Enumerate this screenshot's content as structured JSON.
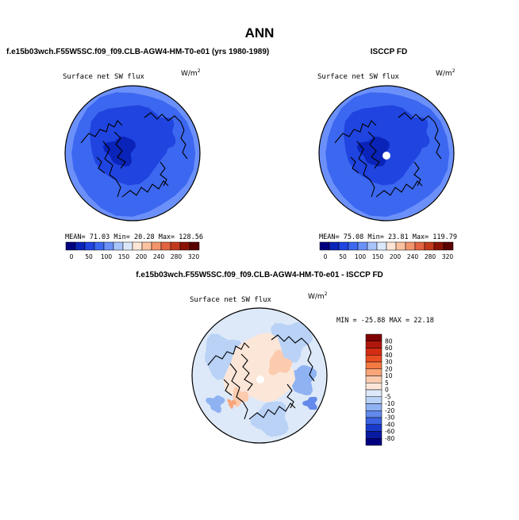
{
  "main_title": "ANN",
  "panels": {
    "model": {
      "header": "f.e15b03wch.F55W5SC.f09_f09.CLB-AGW4-HM-T0-e01 (yrs 1980-1989)",
      "variable": "Surface net SW flux",
      "units": "W/m",
      "units_exp": "2",
      "stats": "MEAN=  71.03  Min=  20.28  Max= 128.56"
    },
    "obs": {
      "header": "ISCCP FD",
      "variable": "Surface net SW flux",
      "units": "W/m",
      "units_exp": "2",
      "stats": "MEAN=  75.08  Min=  23.81  Max= 119.79"
    },
    "diff": {
      "header": "f.e15b03wch.F55W5SC.f09_f09.CLB-AGW4-HM-T0-e01 - ISCCP FD",
      "variable": "Surface net SW flux",
      "units": "W/m",
      "units_exp": "2",
      "stats": "MIN = -25.88 MAX =  22.18"
    }
  },
  "chart_data": [
    {
      "type": "heatmap",
      "projection": "north polar stereographic",
      "title": "Surface net SW flux",
      "units": "W/m2",
      "mean": 71.03,
      "min": 20.28,
      "max": 128.56,
      "colorbar": {
        "orientation": "horizontal",
        "levels": [
          0,
          50,
          100,
          150,
          200,
          240,
          280,
          320
        ],
        "colors": [
          "#00007f",
          "#0a23b8",
          "#1f44e0",
          "#3c67f0",
          "#6b90fa",
          "#a8c4fb",
          "#dbe7fb",
          "#fde6d6",
          "#fbc1a0",
          "#f2946c",
          "#e26440",
          "#c23a1c",
          "#8a1305",
          "#5a0000"
        ]
      }
    },
    {
      "type": "heatmap",
      "projection": "north polar stereographic",
      "title": "Surface net SW flux",
      "units": "W/m2",
      "mean": 75.08,
      "min": 23.81,
      "max": 119.79,
      "colorbar": {
        "orientation": "horizontal",
        "levels": [
          0,
          50,
          100,
          150,
          200,
          240,
          280,
          320
        ],
        "colors": [
          "#00007f",
          "#0a23b8",
          "#1f44e0",
          "#3c67f0",
          "#6b90fa",
          "#a8c4fb",
          "#dbe7fb",
          "#fde6d6",
          "#fbc1a0",
          "#f2946c",
          "#e26440",
          "#c23a1c",
          "#8a1305",
          "#5a0000"
        ]
      }
    },
    {
      "type": "heatmap",
      "projection": "north polar stereographic",
      "title": "Surface net SW flux",
      "units": "W/m2",
      "min": -25.88,
      "max": 22.18,
      "colorbar": {
        "orientation": "vertical",
        "levels": [
          80,
          60,
          40,
          30,
          20,
          10,
          5,
          0,
          -5,
          -10,
          -20,
          -30,
          -40,
          -60,
          -80
        ],
        "colors": [
          "#7f0000",
          "#b0170c",
          "#d32d14",
          "#ea4d22",
          "#f47a43",
          "#f9a578",
          "#fccbae",
          "#fbe6d8",
          "#dde9f8",
          "#b9d2f6",
          "#8fb2f2",
          "#6389ea",
          "#3b62e0",
          "#1a3ac9",
          "#0a1aa0",
          "#000080"
        ]
      }
    }
  ]
}
